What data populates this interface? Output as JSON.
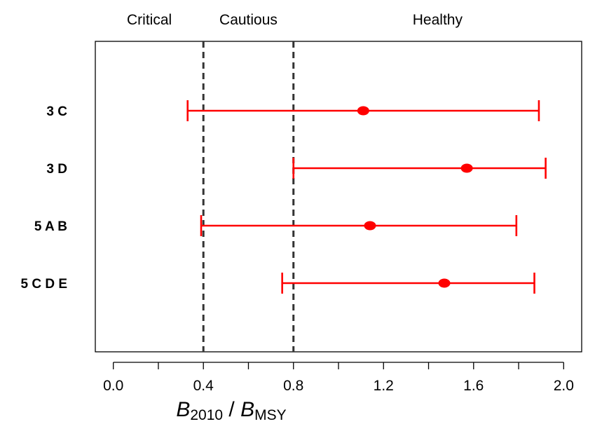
{
  "chart_data": {
    "type": "forest",
    "xlabel": {
      "main": "B",
      "sub1": "2010",
      "sep": " / ",
      "main2": "B",
      "sub2": "MSY"
    },
    "xlim": [
      -0.08,
      2.08
    ],
    "x_ticks": [
      0.0,
      0.2,
      0.4,
      0.6,
      0.8,
      1.0,
      1.2,
      1.4,
      1.6,
      1.8,
      2.0
    ],
    "x_tick_labels": [
      {
        "value": 0.0,
        "label": "0.0"
      },
      {
        "value": 0.4,
        "label": "0.4"
      },
      {
        "value": 0.8,
        "label": "0.8"
      },
      {
        "value": 1.2,
        "label": "1.2"
      },
      {
        "value": 1.6,
        "label": "1.6"
      },
      {
        "value": 2.0,
        "label": "2.0"
      }
    ],
    "reference_lines": [
      0.4,
      0.8
    ],
    "zones": [
      {
        "label": "Critical",
        "from": -0.08,
        "to": 0.4
      },
      {
        "label": "Cautious",
        "from": 0.4,
        "to": 0.8
      },
      {
        "label": "Healthy",
        "from": 0.8,
        "to": 2.08
      }
    ],
    "series": [
      {
        "color": "#ff0000",
        "points": [
          {
            "category": "3 C",
            "estimate": 1.11,
            "lower": 0.33,
            "upper": 1.89
          },
          {
            "category": "3 D",
            "estimate": 1.57,
            "lower": 0.8,
            "upper": 1.92
          },
          {
            "category": "5 A B",
            "estimate": 1.14,
            "lower": 0.39,
            "upper": 1.79
          },
          {
            "category": "5 C D E",
            "estimate": 1.47,
            "lower": 0.75,
            "upper": 1.87
          }
        ]
      }
    ],
    "grid": false,
    "reference_line_color": "#333333"
  }
}
